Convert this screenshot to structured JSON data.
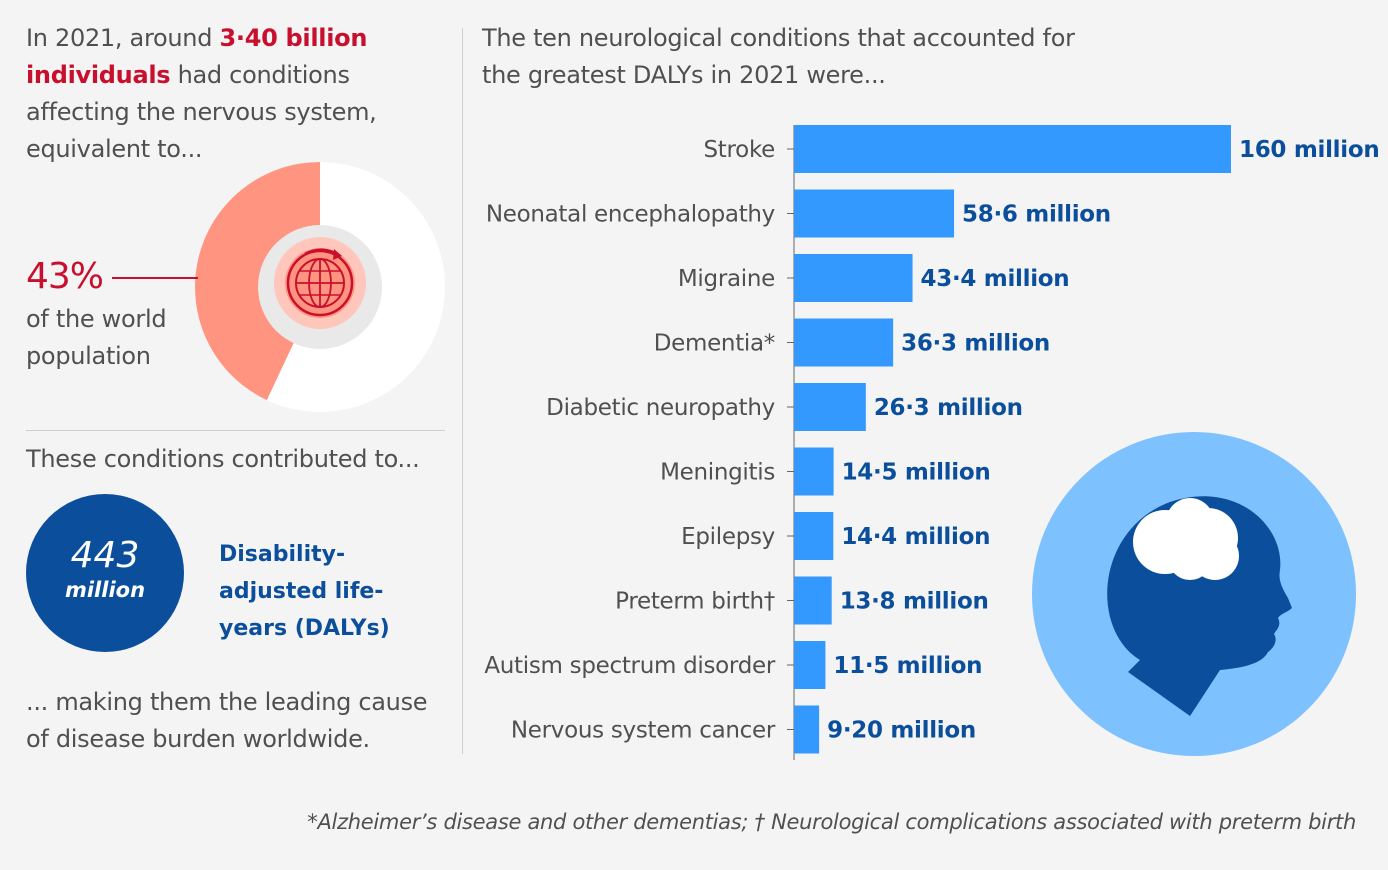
{
  "intro": {
    "prefix": "In 2021, around ",
    "highlight": "3·40 billion individuals",
    "suffix": " had conditions affecting the nervous system, equivalent to..."
  },
  "population": {
    "percent_label": "43%",
    "percent_value": 0.43,
    "description": "of the world population",
    "colors": {
      "share": "#ff9480",
      "rest": "#ffffff",
      "ring": "#e9e9e9",
      "icon": "#c8102e"
    },
    "icon": "globe-icon"
  },
  "contribution": {
    "lead": "These conditions contributed to...",
    "value": "443",
    "unit": "million",
    "label": "Disability-adjusted life-years (DALYs)",
    "closing": "... making them the leading cause of disease burden worldwide."
  },
  "chart_title": "The ten neurological conditions that accounted for the greatest DALYs in 2021 were...",
  "chart_data": {
    "type": "bar",
    "orientation": "horizontal",
    "categories": [
      "Stroke",
      "Neonatal encephalopathy",
      "Migraine",
      "Dementia*",
      "Diabetic neuropathy",
      "Meningitis",
      "Epilepsy",
      "Preterm birth†",
      "Autism spectrum disorder",
      "Nervous system cancer"
    ],
    "values": [
      160,
      58.6,
      43.4,
      36.3,
      26.3,
      14.5,
      14.4,
      13.8,
      11.5,
      9.2
    ],
    "value_labels": [
      "160 million",
      "58·6 million",
      "43·4 million",
      "36·3 million",
      "26·3 million",
      "14·5 million",
      "14·4 million",
      "13·8 million",
      "11·5 million",
      "9·20 million"
    ],
    "unit": "million DALYs",
    "xlim": [
      0,
      160
    ],
    "bar_color": "#3399ff",
    "label_color": "#0b4f9c"
  },
  "decoration": {
    "icon": "head-with-cloud-icon",
    "colors": {
      "circle": "#7ec1ff",
      "head": "#0b4f9c",
      "cloud": "#ffffff"
    }
  },
  "footnote": "*Alzheimer’s disease and other dementias; † Neurological complications associated with preterm birth"
}
